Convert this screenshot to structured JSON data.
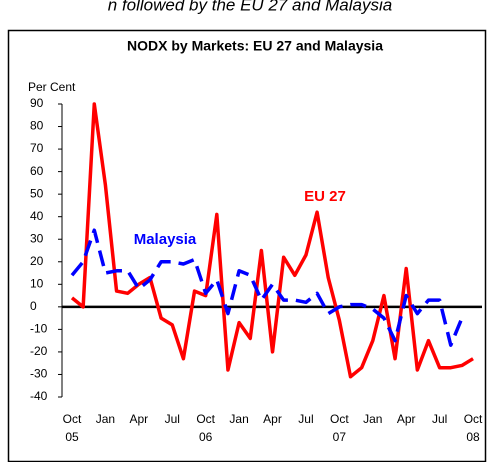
{
  "caption": "n followed by the EU 27 and Malaysia",
  "chart_data": {
    "type": "line",
    "title": "NODX by Markets: EU 27 and Malaysia",
    "y_label": "Per Cent",
    "categories": [
      "Oct 05",
      null,
      null,
      "Jan",
      null,
      null,
      "Apr",
      null,
      null,
      "Jul",
      null,
      null,
      "Oct 06",
      null,
      null,
      "Jan",
      null,
      null,
      "Apr",
      null,
      null,
      "Jul",
      null,
      null,
      "Oct 07",
      null,
      null,
      "Jan",
      null,
      null,
      "Apr",
      null,
      null,
      "Jul",
      null,
      null,
      "Oct 08"
    ],
    "series": [
      {
        "name": "EU 27",
        "color": "#ff0000",
        "dashed": false,
        "values": [
          4,
          0,
          90,
          54,
          7,
          6,
          10,
          13,
          -5,
          -8,
          -23,
          7,
          5,
          41,
          -28,
          -7,
          -14,
          25,
          -20,
          22,
          14,
          23,
          42,
          13,
          -6,
          -31,
          -27,
          -15,
          5,
          -23,
          17,
          -28,
          -15,
          -27,
          -27,
          -26,
          -23
        ]
      },
      {
        "name": "Malaysia",
        "color": "#0000ff",
        "dashed": true,
        "values": [
          14,
          20,
          34,
          15,
          16,
          16,
          8,
          12,
          20,
          20,
          19,
          21,
          6,
          12,
          -3,
          16,
          14,
          3,
          10,
          3,
          3,
          2,
          6,
          -3,
          0,
          1,
          1,
          -1,
          -5,
          -15,
          5,
          -3,
          3,
          3,
          -17,
          -5,
          null
        ]
      }
    ],
    "ylim": [
      -40,
      90
    ],
    "yticks": [
      -40,
      -30,
      -20,
      -10,
      0,
      10,
      20,
      30,
      40,
      50,
      60,
      70,
      80,
      90
    ]
  }
}
